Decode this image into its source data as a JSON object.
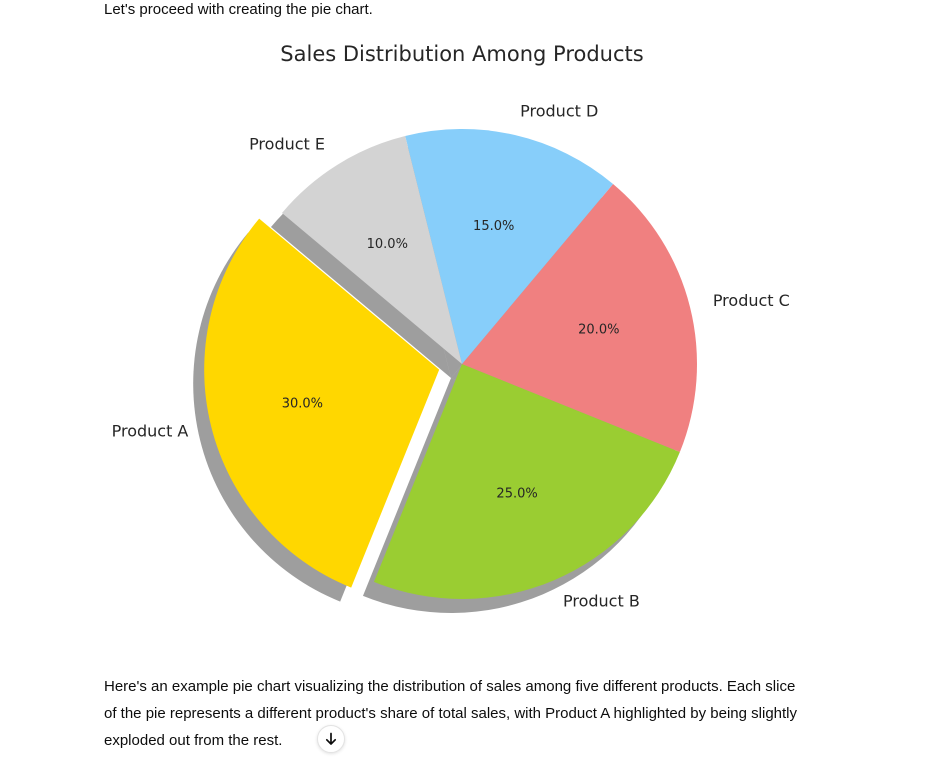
{
  "message": {
    "intro": "Let's proceed with creating the pie chart.",
    "outro": "Here's an example pie chart visualizing the distribution of sales among five different products. Each slice of the pie represents a different product's share of total sales, with Product A highlighted by being slightly exploded out from the rest."
  },
  "icons": {
    "scroll_down": "arrow-down-icon"
  },
  "chart_data": {
    "type": "pie",
    "title": "Sales Distribution Among Products",
    "start_angle_deg": 140,
    "shadow": true,
    "slices": [
      {
        "label": "Product A",
        "value": 30,
        "pct_label": "30.0%",
        "color": "#ffd700",
        "explode": 0.1
      },
      {
        "label": "Product B",
        "value": 25,
        "pct_label": "25.0%",
        "color": "#9acd32",
        "explode": 0
      },
      {
        "label": "Product C",
        "value": 20,
        "pct_label": "20.0%",
        "color": "#f08080",
        "explode": 0
      },
      {
        "label": "Product D",
        "value": 15,
        "pct_label": "15.0%",
        "color": "#87cefa",
        "explode": 0
      },
      {
        "label": "Product E",
        "value": 10,
        "pct_label": "10.0%",
        "color": "#d3d3d3",
        "explode": 0
      }
    ]
  }
}
